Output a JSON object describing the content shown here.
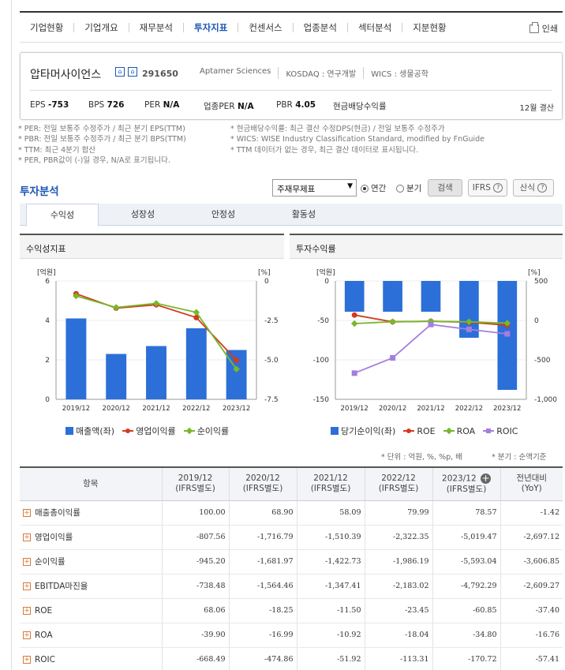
{
  "nav": {
    "tabs": [
      "기업현황",
      "기업개요",
      "재무분석",
      "투자지표",
      "컨센서스",
      "업종분석",
      "섹터분석",
      "지분현황"
    ],
    "active_index": 3,
    "print_label": "인쇄"
  },
  "company": {
    "name": "압타머사이언스",
    "code": "291650",
    "english_name": "Aptamer Sciences",
    "market": "KOSDAQ : 연구개발",
    "wics": "WICS : 생물공학",
    "eps_label": "EPS",
    "eps": "-753",
    "bps_label": "BPS",
    "bps": "726",
    "per_label": "PER",
    "per": "N/A",
    "sector_per_label": "업종PER",
    "sector_per": "N/A",
    "pbr_label": "PBR",
    "pbr": "4.05",
    "div_label": "현금배당수익률",
    "settlement": "12월 결산"
  },
  "notes": {
    "left": [
      "* PER: 전일 보통주 수정주가 / 최근 분기 EPS(TTM)",
      "* PBR: 전일 보통주 수정주가 / 최근 분기 BPS(TTM)",
      "* TTM: 최근 4분기 합산",
      "* PER, PBR값이 (-)일 경우, N/A로 표기됩니다."
    ],
    "right": [
      "* 현금배당수익률: 최근 결산 수정DPS(현금) / 전일 보통주 수정주가",
      "* WICS: WISE Industry Classification Standard, modified by FnGuide",
      "* TTM 데이터가 없는 경우, 최근 결산 데이터로 표시됩니다."
    ]
  },
  "analysis": {
    "title": "투자분석",
    "select_value": "주재무제표",
    "radio_annual": "연간",
    "radio_quarter": "분기",
    "search_button": "검색",
    "ifrs_button": "IFRS",
    "formula_button": "산식",
    "subtabs": [
      "수익성",
      "성장성",
      "안정성",
      "활동성"
    ]
  },
  "charts": {
    "left_title": "수익성지표",
    "right_title": "투자수익률",
    "left_unit_left": "[억원]",
    "left_unit_right": "[%]",
    "right_unit_left": "[억원]",
    "right_unit_right": "[%]",
    "left_legend": [
      "매출액(좌)",
      "영업이익률",
      "순이익률"
    ],
    "right_legend": [
      "당기순이익(좌)",
      "ROE",
      "ROA",
      "ROIC"
    ],
    "colors": {
      "bar": "#2c6fd8",
      "red": "#d43a1f",
      "green": "#76b82a",
      "purple": "#a57ee0"
    }
  },
  "chart_data": [
    {
      "type": "bar",
      "categories": [
        "2019/12",
        "2020/12",
        "2021/12",
        "2022/12",
        "2023/12"
      ],
      "ylim": [
        0,
        6
      ],
      "yticks": [
        0,
        2,
        4,
        6
      ],
      "y2lim": [
        -7.5,
        0
      ],
      "y2ticks": [
        "0",
        "-2.5",
        "-5.0",
        "-7.5"
      ],
      "series": [
        {
          "name": "매출액(좌)",
          "kind": "bar",
          "axis": "left",
          "values": [
            4.1,
            2.3,
            2.7,
            3.6,
            2.5
          ]
        },
        {
          "name": "영업이익률",
          "kind": "line",
          "axis": "right",
          "values": [
            -0.81,
            -1.72,
            -1.51,
            -2.32,
            -5.02
          ]
        },
        {
          "name": "순이익률",
          "kind": "line",
          "axis": "right",
          "values": [
            -0.95,
            -1.68,
            -1.42,
            -1.99,
            -5.59
          ]
        }
      ]
    },
    {
      "type": "bar",
      "categories": [
        "2019/12",
        "2020/12",
        "2021/12",
        "2022/12",
        "2023/12"
      ],
      "ylim": [
        -150,
        0
      ],
      "yticks": [
        0,
        -50,
        -100,
        -150
      ],
      "y2lim": [
        -1000,
        500
      ],
      "y2ticks": [
        "500",
        "0",
        "-500",
        "-1,000"
      ],
      "series": [
        {
          "name": "당기순이익(좌)",
          "kind": "bar",
          "axis": "left",
          "values": [
            -39,
            -39,
            -39,
            -72,
            -138
          ]
        },
        {
          "name": "ROE",
          "kind": "line",
          "axis": "right",
          "values": [
            68.06,
            -18.25,
            -11.5,
            -23.45,
            -60.85
          ]
        },
        {
          "name": "ROA",
          "kind": "line",
          "axis": "right",
          "values": [
            -39.9,
            -16.99,
            -10.92,
            -18.04,
            -34.8
          ]
        },
        {
          "name": "ROIC",
          "kind": "line",
          "axis": "right",
          "values": [
            -668.49,
            -474.86,
            -51.92,
            -113.31,
            -170.72
          ]
        }
      ]
    }
  ],
  "table": {
    "unit_note": "* 단위 : 억원, %, %p, 배",
    "quarter_note": "* 분기 : 순액기준",
    "head_item": "항목",
    "columns": [
      [
        "2019/12",
        "(IFRS별도)"
      ],
      [
        "2020/12",
        "(IFRS별도)"
      ],
      [
        "2021/12",
        "(IFRS별도)"
      ],
      [
        "2022/12",
        "(IFRS별도)"
      ],
      [
        "2023/12",
        "(IFRS별도)"
      ],
      [
        "전년대비",
        "(YoY)"
      ]
    ],
    "rows": [
      {
        "label": "매출총이익률",
        "values": [
          "100.00",
          "68.90",
          "58.09",
          "79.99",
          "78.57",
          "-1.42"
        ]
      },
      {
        "label": "영업이익률",
        "values": [
          "-807.56",
          "-1,716.79",
          "-1,510.39",
          "-2,322.35",
          "-5,019.47",
          "-2,697.12"
        ]
      },
      {
        "label": "순이익률",
        "values": [
          "-945.20",
          "-1,681.97",
          "-1,422.73",
          "-1,986.19",
          "-5,593.04",
          "-3,606.85"
        ]
      },
      {
        "label": "EBITDA마진율",
        "values": [
          "-738.48",
          "-1,564.46",
          "-1,347.41",
          "-2,183.02",
          "-4,792.29",
          "-2,609.27"
        ]
      },
      {
        "label": "ROE",
        "values": [
          "68.06",
          "-18.25",
          "-11.50",
          "-23.45",
          "-60.85",
          "-37.40"
        ]
      },
      {
        "label": "ROA",
        "values": [
          "-39.90",
          "-16.99",
          "-10.92",
          "-18.04",
          "-34.80",
          "-16.76"
        ]
      },
      {
        "label": "ROIC",
        "values": [
          "-668.49",
          "-474.86",
          "-51.92",
          "-113.31",
          "-170.72",
          "-57.41"
        ]
      }
    ]
  }
}
